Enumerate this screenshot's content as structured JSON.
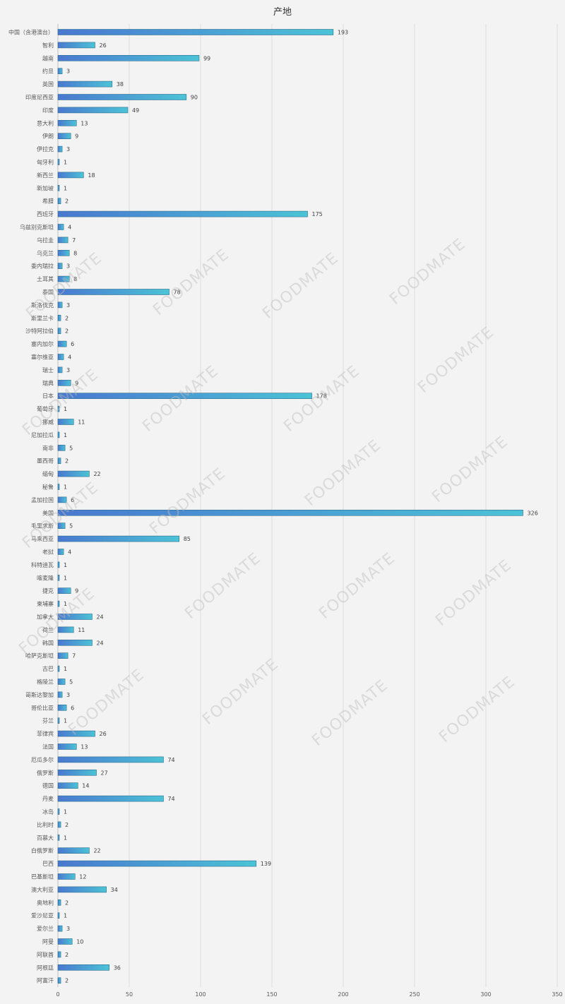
{
  "watermark_text": "FOODMATE",
  "colors": {
    "background": "#f3f3f3",
    "bar_start": "#4a78d0",
    "bar_end": "#4bc3d6",
    "bar_stroke": "#2f6f8f",
    "gridline": "#dcdcdc"
  },
  "chart_data": {
    "type": "bar",
    "orientation": "horizontal",
    "title": "产地",
    "xlabel": "",
    "ylabel": "",
    "xlim": [
      0,
      350
    ],
    "xticks": [
      0,
      50,
      100,
      150,
      200,
      250,
      300,
      350
    ],
    "grid": true,
    "data_labels": true,
    "categories": [
      "中国（含港澳台）",
      "智利",
      "越南",
      "约旦",
      "英国",
      "印度尼西亚",
      "印度",
      "意大利",
      "伊朗",
      "伊拉克",
      "匈牙利",
      "新西兰",
      "新加坡",
      "希腊",
      "西班牙",
      "乌兹别克斯坦",
      "乌拉圭",
      "乌克兰",
      "委内瑞拉",
      "土耳其",
      "泰国",
      "斯洛伐克",
      "斯里兰卡",
      "沙特阿拉伯",
      "塞内加尔",
      "塞尔维亚",
      "瑞士",
      "瑞典",
      "日本",
      "葡萄牙",
      "挪威",
      "尼加拉瓜",
      "南非",
      "墨西哥",
      "缅甸",
      "秘鲁",
      "孟加拉国",
      "美国",
      "毛里求斯",
      "马来西亚",
      "老挝",
      "科特迪瓦",
      "喀麦隆",
      "捷克",
      "柬埔寨",
      "加拿大",
      "荷兰",
      "韩国",
      "哈萨克斯坦",
      "古巴",
      "格陵兰",
      "哥斯达黎加",
      "哥伦比亚",
      "芬兰",
      "菲律宾",
      "法国",
      "厄瓜多尔",
      "俄罗斯",
      "德国",
      "丹麦",
      "冰岛",
      "比利时",
      "百慕大",
      "白俄罗斯",
      "巴西",
      "巴基斯坦",
      "澳大利亚",
      "奥地利",
      "爱沙尼亚",
      "爱尔兰",
      "阿曼",
      "阿联酋",
      "阿根廷",
      "阿富汗"
    ],
    "values": [
      193,
      26,
      99,
      3,
      38,
      90,
      49,
      13,
      9,
      3,
      1,
      18,
      1,
      2,
      175,
      4,
      7,
      8,
      3,
      8,
      78,
      3,
      2,
      2,
      6,
      4,
      3,
      9,
      178,
      1,
      11,
      1,
      5,
      2,
      22,
      1,
      6,
      326,
      5,
      85,
      4,
      1,
      1,
      9,
      1,
      24,
      11,
      24,
      7,
      1,
      5,
      3,
      6,
      1,
      26,
      13,
      74,
      27,
      14,
      74,
      1,
      2,
      1,
      22,
      139,
      12,
      34,
      2,
      1,
      3,
      10,
      2,
      36,
      2
    ]
  }
}
